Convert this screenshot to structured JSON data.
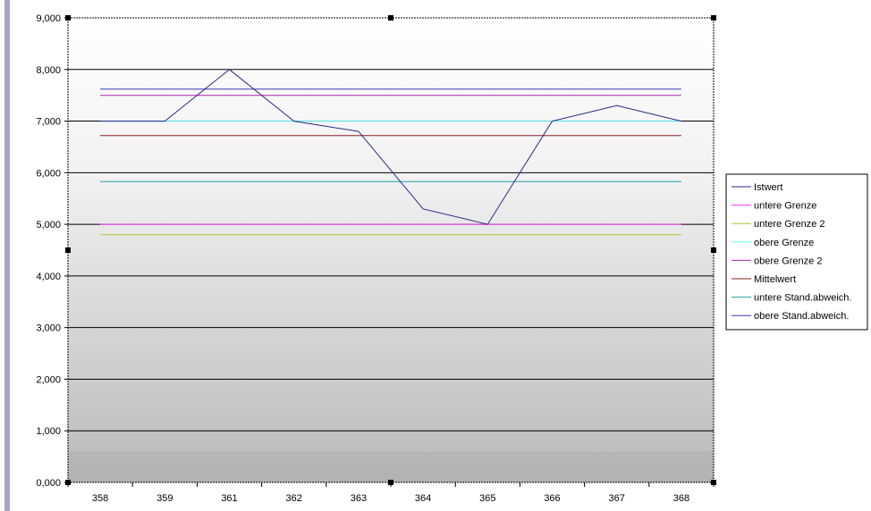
{
  "chart_data": {
    "type": "line",
    "categories": [
      "358",
      "359",
      "361",
      "362",
      "363",
      "364",
      "365",
      "366",
      "367",
      "368"
    ],
    "ylim": [
      0,
      9000
    ],
    "yticks": [
      "0,000",
      "1,000",
      "2,000",
      "3,000",
      "4,000",
      "5,000",
      "6,000",
      "7,000",
      "8,000",
      "9,000"
    ],
    "grid": true,
    "legend_position": "right",
    "series": [
      {
        "name": "Istwert",
        "color": "#2a2a8a",
        "values": [
          7000,
          7000,
          8000,
          7000,
          6800,
          5300,
          5000,
          7000,
          7300,
          7000
        ]
      },
      {
        "name": "untere Grenze",
        "color": "#ff33ff",
        "values": [
          5000,
          5000,
          5000,
          5000,
          5000,
          5000,
          5000,
          5000,
          5000,
          5000
        ]
      },
      {
        "name": "untere Grenze 2",
        "color": "#a8c832",
        "values": [
          4800,
          4800,
          4800,
          4800,
          4800,
          4800,
          4800,
          4800,
          4800,
          4800
        ]
      },
      {
        "name": "obere Grenze",
        "color": "#66ffff",
        "values": [
          7000,
          7000,
          7000,
          7000,
          7000,
          7000,
          7000,
          7000,
          7000,
          7000
        ]
      },
      {
        "name": "obere Grenze 2",
        "color": "#aa22aa",
        "values": [
          7500,
          7500,
          7500,
          7500,
          7500,
          7500,
          7500,
          7500,
          7500,
          7500
        ]
      },
      {
        "name": "Mittelwert",
        "color": "#8a1e1e",
        "values": [
          6720,
          6720,
          6720,
          6720,
          6720,
          6720,
          6720,
          6720,
          6720,
          6720
        ]
      },
      {
        "name": "untere Stand.abweich.",
        "color": "#20a0a8",
        "values": [
          5830,
          5830,
          5830,
          5830,
          5830,
          5830,
          5830,
          5830,
          5830,
          5830
        ]
      },
      {
        "name": "obere Stand.abweich.",
        "color": "#3a3ab8",
        "values": [
          7620,
          7620,
          7620,
          7620,
          7620,
          7620,
          7620,
          7620,
          7620,
          7620
        ]
      }
    ]
  }
}
